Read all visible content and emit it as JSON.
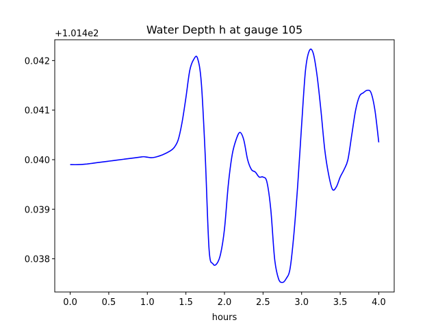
{
  "chart_data": {
    "type": "line",
    "title": "Water Depth h at gauge 105",
    "xlabel": "hours",
    "ylabel": "",
    "offset_label": "+1.014e2",
    "xlim": [
      -0.2,
      4.2
    ],
    "ylim": [
      0.03733,
      0.04242
    ],
    "x_ticks": [
      0.0,
      0.5,
      1.0,
      1.5,
      2.0,
      2.5,
      3.0,
      3.5,
      4.0
    ],
    "x_tick_labels": [
      "0.0",
      "0.5",
      "1.0",
      "1.5",
      "2.0",
      "2.5",
      "3.0",
      "3.5",
      "4.0"
    ],
    "y_ticks": [
      0.038,
      0.039,
      0.04,
      0.041,
      0.042
    ],
    "y_tick_labels": [
      "0.038",
      "0.039",
      "0.040",
      "0.041",
      "0.042"
    ],
    "grid": false,
    "series": [
      {
        "color": "#0000ff",
        "x": [
          0.0,
          0.1,
          0.2,
          0.3,
          0.4,
          0.5,
          0.6,
          0.7,
          0.8,
          0.9,
          0.95,
          1.0,
          1.05,
          1.1,
          1.2,
          1.3,
          1.35,
          1.4,
          1.45,
          1.5,
          1.55,
          1.6,
          1.65,
          1.7,
          1.75,
          1.8,
          1.85,
          1.9,
          1.95,
          2.0,
          2.05,
          2.1,
          2.15,
          2.2,
          2.25,
          2.3,
          2.35,
          2.4,
          2.45,
          2.5,
          2.55,
          2.6,
          2.65,
          2.7,
          2.75,
          2.8,
          2.85,
          2.9,
          2.95,
          3.0,
          3.05,
          3.1,
          3.15,
          3.2,
          3.25,
          3.3,
          3.35,
          3.4,
          3.45,
          3.5,
          3.55,
          3.6,
          3.65,
          3.7,
          3.75,
          3.8,
          3.85,
          3.9,
          3.95,
          4.0
        ],
        "y": [
          0.0399,
          0.0399,
          0.03991,
          0.03993,
          0.03995,
          0.03997,
          0.03999,
          0.04001,
          0.04003,
          0.04005,
          0.04006,
          0.04005,
          0.04004,
          0.04005,
          0.0401,
          0.04018,
          0.04025,
          0.0404,
          0.04075,
          0.04125,
          0.0418,
          0.04202,
          0.04205,
          0.04155,
          0.0401,
          0.0382,
          0.0379,
          0.0379,
          0.0381,
          0.0386,
          0.0395,
          0.0401,
          0.0404,
          0.04055,
          0.0404,
          0.04,
          0.0398,
          0.03975,
          0.03965,
          0.03965,
          0.03955,
          0.039,
          0.038,
          0.0376,
          0.03752,
          0.0376,
          0.0378,
          0.0385,
          0.0395,
          0.0407,
          0.0418,
          0.0422,
          0.04215,
          0.0417,
          0.041,
          0.0402,
          0.0397,
          0.0394,
          0.03945,
          0.03965,
          0.0398,
          0.04,
          0.0405,
          0.041,
          0.04128,
          0.04135,
          0.0414,
          0.04135,
          0.041,
          0.04035
        ]
      }
    ]
  }
}
